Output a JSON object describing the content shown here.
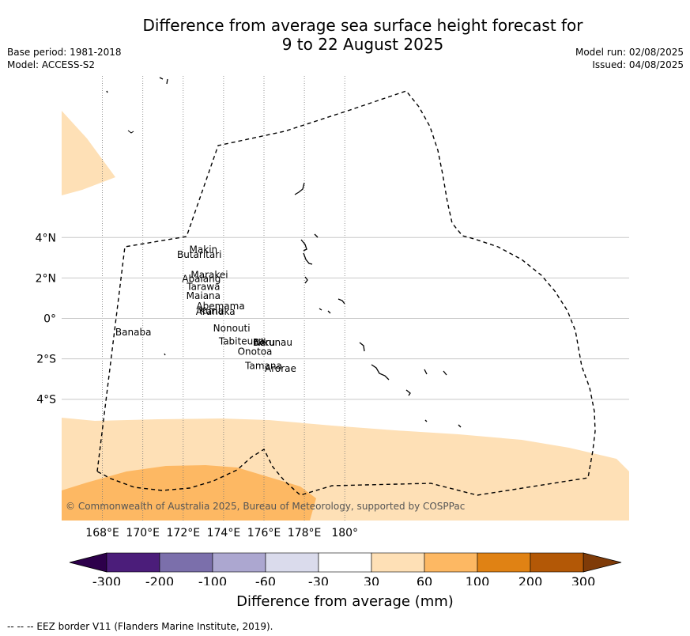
{
  "header": {
    "title": "Difference from average sea surface height forecast for\n9 to 22 August 2025",
    "base_period": "Base period: 1981-2018",
    "model": "Model: ACCESS-S2",
    "model_run": "Model run: 02/08/2025",
    "issued": "Issued: 04/08/2025"
  },
  "map": {
    "lon_ticks": [
      {
        "lon": 168,
        "label": "168°E"
      },
      {
        "lon": 170,
        "label": "170°E"
      },
      {
        "lon": 172,
        "label": "172°E"
      },
      {
        "lon": 174,
        "label": "174°E"
      },
      {
        "lon": 176,
        "label": "176°E"
      },
      {
        "lon": 178,
        "label": "178°E"
      },
      {
        "lon": 180,
        "label": "180°"
      }
    ],
    "lat_ticks": [
      {
        "lat": 4,
        "label": "4°N"
      },
      {
        "lat": 2,
        "label": "2°N"
      },
      {
        "lat": 0,
        "label": "0°"
      },
      {
        "lat": -2,
        "label": "2°S"
      },
      {
        "lat": -4,
        "label": "4°S"
      }
    ],
    "islands": [
      {
        "name": "Makin",
        "lon": 173.0,
        "lat": 3.25
      },
      {
        "name": "Butaritari",
        "lon": 172.8,
        "lat": 3.0
      },
      {
        "name": "Marakei",
        "lon": 173.3,
        "lat": 2.0
      },
      {
        "name": "Abaiang",
        "lon": 172.9,
        "lat": 1.8
      },
      {
        "name": "Tarawa",
        "lon": 173.0,
        "lat": 1.4
      },
      {
        "name": "Maiana",
        "lon": 173.0,
        "lat": 0.95
      },
      {
        "name": "Abemama",
        "lon": 173.85,
        "lat": 0.45
      },
      {
        "name": "Kuria",
        "lon": 173.4,
        "lat": 0.22
      },
      {
        "name": "Aranuka",
        "lon": 173.6,
        "lat": 0.18
      },
      {
        "name": "Nonouti",
        "lon": 174.4,
        "lat": -0.65
      },
      {
        "name": "Tabiteuea",
        "lon": 174.9,
        "lat": -1.3
      },
      {
        "name": "Beru",
        "lon": 176.0,
        "lat": -1.35
      },
      {
        "name": "Nikunau",
        "lon": 176.45,
        "lat": -1.35
      },
      {
        "name": "Onotoa",
        "lon": 175.55,
        "lat": -1.8
      },
      {
        "name": "Tamana",
        "lon": 175.98,
        "lat": -2.5
      },
      {
        "name": "Arorae",
        "lon": 176.82,
        "lat": -2.65
      },
      {
        "name": "Banaba",
        "lon": 169.53,
        "lat": -0.85
      }
    ],
    "copyright": "© Commonwealth of Australia 2025, Bureau of Meteorology, supported by COSPPac"
  },
  "colorbar": {
    "labels": [
      "-300",
      "-200",
      "-100",
      "-60",
      "-30",
      "30",
      "60",
      "100",
      "200",
      "300"
    ],
    "colors": [
      "#4b1d7a",
      "#7b6fab",
      "#aca7d0",
      "#dadbec",
      "#ffffff",
      "#fee0b6",
      "#fdb863",
      "#e08214",
      "#b35806"
    ],
    "under_color": "#2d004b",
    "over_color": "#7f3b08",
    "title": "Difference from average (mm)"
  },
  "footer": {
    "legend": "--  --  -- EEZ border V11 (Flanders Marine Institute, 2019)."
  }
}
